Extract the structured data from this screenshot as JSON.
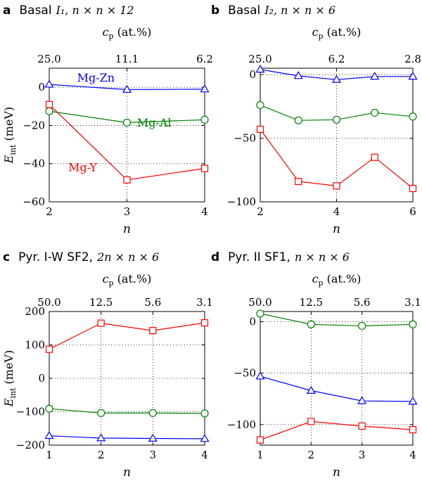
{
  "colors": {
    "Mg-Zn": "#0000ff",
    "Mg-Al": "#007f00",
    "Mg-Y": "#ff0000"
  },
  "chart_data": [
    {
      "type": "line",
      "letter": "a",
      "title": "Basal I1, n × n × 12",
      "title_text": "Basal",
      "title_math": "I₁, n × n × 12",
      "xlabel": "n",
      "ylabel": "E_int (meV)",
      "top_axis_label": "c_p (at.%)",
      "x": [
        2,
        3,
        4
      ],
      "xlim": [
        2,
        4
      ],
      "ylim": [
        -60,
        10
      ],
      "xticks": [
        "2",
        "3",
        "4"
      ],
      "yticks": [
        0,
        -20,
        -40,
        -60
      ],
      "yticklabels": [
        "0",
        "−20",
        "−40",
        "−60"
      ],
      "top_ticks": [
        {
          "x": 2,
          "label": "25.0"
        },
        {
          "x": 3,
          "label": "11.1"
        },
        {
          "x": 4,
          "label": "6.2"
        }
      ],
      "grid": true,
      "series": [
        {
          "name": "Mg-Zn",
          "marker": "triangle",
          "label_x": 2.6,
          "label_y": 3,
          "x": [
            2,
            3,
            4
          ],
          "values": [
            1.5,
            -1.2,
            -1.0
          ]
        },
        {
          "name": "Mg-Al",
          "marker": "circle",
          "label_x": 3.35,
          "label_y": -20.5,
          "x": [
            2,
            3,
            4
          ],
          "values": [
            -12.5,
            -18.5,
            -17.0
          ]
        },
        {
          "name": "Mg-Y",
          "marker": "square",
          "label_x": 2.43,
          "label_y": -44,
          "x": [
            2,
            3,
            4
          ],
          "values": [
            -9.0,
            -48.5,
            -42.5
          ]
        }
      ]
    },
    {
      "type": "line",
      "letter": "b",
      "title": "Basal I2, n × n × 6",
      "title_text": "Basal",
      "title_math": "I₂, n × n × 6",
      "xlabel": "n",
      "ylabel": "",
      "top_axis_label": "c_p (at.%)",
      "x": [
        2,
        3,
        4,
        5,
        6
      ],
      "xlim": [
        2,
        6
      ],
      "ylim": [
        -100,
        5
      ],
      "xticks": [
        "2",
        "4",
        "6"
      ],
      "xtick_values": [
        2,
        4,
        6
      ],
      "yticks": [
        0,
        -50,
        -100
      ],
      "yticklabels": [
        "0",
        "−50",
        "−100"
      ],
      "top_ticks": [
        {
          "x": 2,
          "label": "25.0"
        },
        {
          "x": 4,
          "label": "6.2"
        },
        {
          "x": 6,
          "label": "2.8"
        }
      ],
      "grid": true,
      "series": [
        {
          "name": "Mg-Zn",
          "marker": "triangle",
          "x": [
            2,
            3,
            4,
            5,
            6
          ],
          "values": [
            4,
            -1,
            -4,
            -1.5,
            -1.5
          ]
        },
        {
          "name": "Mg-Al",
          "marker": "circle",
          "x": [
            2,
            3,
            4,
            5,
            6
          ],
          "values": [
            -24,
            -36,
            -35.5,
            -30,
            -33
          ]
        },
        {
          "name": "Mg-Y",
          "marker": "square",
          "x": [
            2,
            3,
            4,
            5,
            6
          ],
          "values": [
            -43,
            -84,
            -87.5,
            -65,
            -89.5
          ]
        }
      ]
    },
    {
      "type": "line",
      "letter": "c",
      "title": "Pyr. I-W SF2, 2n × n × 6",
      "title_text": "Pyr. I-W SF2,",
      "title_math": "2n × n × 6",
      "xlabel": "n",
      "ylabel": "E_int (meV)",
      "top_axis_label": "c_p (at.%)",
      "x": [
        1,
        2,
        3,
        4
      ],
      "xlim": [
        1,
        4
      ],
      "ylim": [
        -200,
        200
      ],
      "xticks": [
        "1",
        "2",
        "3",
        "4"
      ],
      "yticks": [
        200,
        100,
        0,
        -100,
        -200
      ],
      "yticklabels": [
        "200",
        "100",
        "0",
        "−100",
        "−200"
      ],
      "top_ticks": [
        {
          "x": 1,
          "label": "50.0"
        },
        {
          "x": 2,
          "label": "12.5"
        },
        {
          "x": 3,
          "label": "5.6"
        },
        {
          "x": 4,
          "label": "3.1"
        }
      ],
      "grid": true,
      "series": [
        {
          "name": "Mg-Zn",
          "marker": "triangle",
          "x": [
            1,
            2,
            3,
            4
          ],
          "values": [
            -172,
            -179,
            -180,
            -181
          ]
        },
        {
          "name": "Mg-Al",
          "marker": "circle",
          "x": [
            1,
            2,
            3,
            4
          ],
          "values": [
            -91,
            -104,
            -104,
            -105
          ]
        },
        {
          "name": "Mg-Y",
          "marker": "square",
          "x": [
            1,
            2,
            3,
            4
          ],
          "values": [
            87,
            165,
            143,
            166
          ]
        }
      ]
    },
    {
      "type": "line",
      "letter": "d",
      "title": "Pyr. II SF1, n × n × 6",
      "title_text": "Pyr. II SF1,",
      "title_math": "n × n × 6",
      "xlabel": "n",
      "ylabel": "",
      "top_axis_label": "c_p (at.%)",
      "x": [
        1,
        2,
        3,
        4
      ],
      "xlim": [
        1,
        4
      ],
      "ylim": [
        -120,
        10
      ],
      "xticks": [
        "1",
        "2",
        "3",
        "4"
      ],
      "yticks": [
        0,
        -50,
        -100
      ],
      "yticklabels": [
        "0",
        "−50",
        "−100"
      ],
      "top_ticks": [
        {
          "x": 1,
          "label": "50.0"
        },
        {
          "x": 2,
          "label": "12.5"
        },
        {
          "x": 3,
          "label": "5.6"
        },
        {
          "x": 4,
          "label": "3.1"
        }
      ],
      "grid": true,
      "series": [
        {
          "name": "Mg-Zn",
          "marker": "triangle",
          "x": [
            1,
            2,
            3,
            4
          ],
          "values": [
            -53,
            -67,
            -77,
            -77.5
          ]
        },
        {
          "name": "Mg-Al",
          "marker": "circle",
          "x": [
            1,
            2,
            3,
            4
          ],
          "values": [
            8,
            -2.5,
            -4,
            -2.5
          ]
        },
        {
          "name": "Mg-Y",
          "marker": "square",
          "x": [
            1,
            2,
            3,
            4
          ],
          "values": [
            -115,
            -97,
            -101.5,
            -105
          ]
        }
      ]
    }
  ]
}
